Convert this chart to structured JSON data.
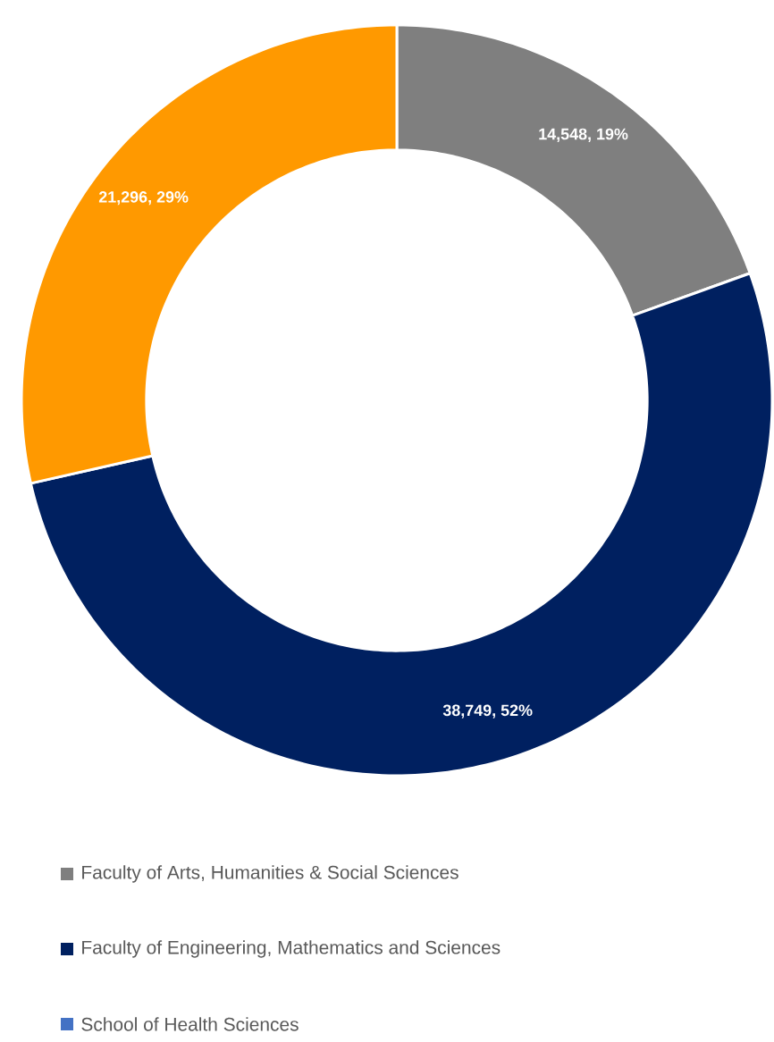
{
  "chart_data": {
    "type": "donut",
    "categories": [
      "Faculty of Arts, Humanities & Social Sciences",
      "Faculty of Engineering, Mathematics and Sciences",
      "School of Health Sciences",
      null
    ],
    "values": [
      14548,
      38749,
      0,
      21296
    ],
    "colors": [
      "#7f7f7f",
      "#002060",
      "#4472c4",
      "#ff9900"
    ],
    "value_labels": [
      "14,548, 19%",
      "38,749, 52%",
      null,
      "21,296, 29%"
    ],
    "legend": "bottom"
  }
}
